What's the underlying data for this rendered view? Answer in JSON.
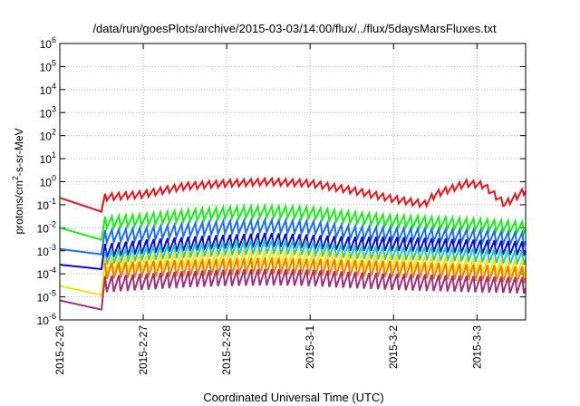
{
  "chart_data": {
    "type": "line",
    "title": "/data/run/goesPlots/archive/2015-03-03/14:00/flux/../flux/5daysMarsFluxes.txt",
    "xlabel": "Coordinated Universal Time (UTC)",
    "ylabel": {
      "pre": "protons/cm",
      "sup": "2",
      "post": "-s-sr-MeV"
    },
    "x_unit": "days",
    "xlim": [
      "2015-02-26 00:00",
      "2015-03-03 14:00"
    ],
    "x_ticks": [
      "2015-2-26",
      "2015-2-27",
      "2015-2-28",
      "2015-3-1",
      "2015-3-2",
      "2015-3-3"
    ],
    "y_scale": "log",
    "ylim": [
      1e-06,
      1000000.0
    ],
    "y_ticks": [
      {
        "base": "10",
        "exp": "-6"
      },
      {
        "base": "10",
        "exp": "-5"
      },
      {
        "base": "10",
        "exp": "-4"
      },
      {
        "base": "10",
        "exp": "-3"
      },
      {
        "base": "10",
        "exp": "-2"
      },
      {
        "base": "10",
        "exp": "-1"
      },
      {
        "base": "10",
        "exp": "0"
      },
      {
        "base": "10",
        "exp": "1"
      },
      {
        "base": "10",
        "exp": "2"
      },
      {
        "base": "10",
        "exp": "3"
      },
      {
        "base": "10",
        "exp": "4"
      },
      {
        "base": "10",
        "exp": "5"
      },
      {
        "base": "10",
        "exp": "6"
      }
    ],
    "grid": true,
    "legend": "none",
    "series": [
      {
        "color": "#e8141c",
        "sawtooth_amplitude_decades": 0.3,
        "x": [
          "2015-02-26 00:00",
          "2015-02-26 12:00",
          "2015-02-26 13:00",
          "2015-02-27 00:00",
          "2015-02-27 12:00",
          "2015-02-28 00:00",
          "2015-02-28 12:00",
          "2015-03-01 00:00",
          "2015-03-01 12:00",
          "2015-03-02 00:00",
          "2015-03-02 09:00",
          "2015-03-02 12:00",
          "2015-03-02 21:00",
          "2015-03-03 02:00",
          "2015-03-03 08:00",
          "2015-03-03 14:00"
        ],
        "values": [
          0.2,
          0.05,
          0.3,
          0.4,
          0.9,
          1.2,
          1.4,
          1.2,
          0.6,
          0.25,
          0.15,
          0.4,
          1.2,
          1.0,
          0.15,
          0.6
        ]
      },
      {
        "color": "#1aee1a",
        "sawtooth_amplitude_decades": 0.5,
        "x": [
          "2015-02-26 00:00",
          "2015-02-26 12:00",
          "2015-02-26 13:00",
          "2015-02-27 00:00",
          "2015-02-27 12:00",
          "2015-02-28 00:00",
          "2015-02-28 12:00",
          "2015-03-01 00:00",
          "2015-03-01 12:00",
          "2015-03-02 00:00",
          "2015-03-02 12:00",
          "2015-03-03 00:00",
          "2015-03-03 14:00"
        ],
        "values": [
          0.01,
          0.003,
          0.03,
          0.04,
          0.06,
          0.08,
          0.09,
          0.08,
          0.05,
          0.035,
          0.03,
          0.025,
          0.018
        ]
      },
      {
        "color": "#1e6ff0",
        "sawtooth_amplitude_decades": 0.55,
        "x": [
          "2015-02-26 00:00",
          "2015-02-26 12:00",
          "2015-02-26 13:00",
          "2015-02-27 00:00",
          "2015-02-27 12:00",
          "2015-02-28 00:00",
          "2015-02-28 12:00",
          "2015-03-01 00:00",
          "2015-03-01 12:00",
          "2015-03-02 00:00",
          "2015-03-02 12:00",
          "2015-03-03 00:00",
          "2015-03-03 14:00"
        ],
        "values": [
          0.0012,
          0.0007,
          0.008,
          0.01,
          0.015,
          0.02,
          0.022,
          0.02,
          0.012,
          0.01,
          0.009,
          0.008,
          0.006
        ]
      },
      {
        "color": "#0a0ad0",
        "sawtooth_amplitude_decades": 0.6,
        "x": [
          "2015-02-26 00:00",
          "2015-02-26 12:00",
          "2015-02-26 13:00",
          "2015-02-27 00:00",
          "2015-02-27 12:00",
          "2015-02-28 00:00",
          "2015-02-28 12:00",
          "2015-03-01 00:00",
          "2015-03-01 12:00",
          "2015-03-02 00:00",
          "2015-03-02 12:00",
          "2015-03-03 00:00",
          "2015-03-03 14:00"
        ],
        "values": [
          0.00025,
          0.00016,
          0.002,
          0.003,
          0.004,
          0.005,
          0.006,
          0.005,
          0.004,
          0.004,
          0.0035,
          0.003,
          0.0025
        ]
      },
      {
        "color": "#18c8b4",
        "sawtooth_amplitude_decades": 0.6,
        "x": [
          "2015-02-26 13:00",
          "2015-02-27 00:00",
          "2015-02-27 12:00",
          "2015-02-28 00:00",
          "2015-02-28 12:00",
          "2015-03-01 00:00",
          "2015-03-01 12:00",
          "2015-03-02 00:00",
          "2015-03-02 12:00",
          "2015-03-03 00:00",
          "2015-03-03 14:00"
        ],
        "values": [
          0.001,
          0.0015,
          0.002,
          0.0025,
          0.003,
          0.0025,
          0.0018,
          0.0016,
          0.0015,
          0.0013,
          0.001
        ]
      },
      {
        "color": "#f0e600",
        "sawtooth_amplitude_decades": 0.7,
        "x": [
          "2015-02-26 00:00",
          "2015-02-26 12:00",
          "2015-02-26 13:00",
          "2015-02-27 00:00",
          "2015-02-27 12:00",
          "2015-02-28 00:00",
          "2015-02-28 12:00",
          "2015-03-01 00:00",
          "2015-03-01 12:00",
          "2015-03-02 00:00",
          "2015-03-02 12:00",
          "2015-03-03 00:00",
          "2015-03-03 14:00"
        ],
        "values": [
          3e-05,
          1.2e-05,
          0.0005,
          0.0007,
          0.0009,
          0.001,
          0.0011,
          0.001,
          0.0008,
          0.0007,
          0.0006,
          0.0005,
          0.0004
        ]
      },
      {
        "color": "#f07800",
        "sawtooth_amplitude_decades": 0.7,
        "x": [
          "2015-02-26 13:00",
          "2015-02-27 00:00",
          "2015-02-27 12:00",
          "2015-02-28 00:00",
          "2015-02-28 12:00",
          "2015-03-01 00:00",
          "2015-03-01 12:00",
          "2015-03-02 00:00",
          "2015-03-02 12:00",
          "2015-03-03 00:00",
          "2015-03-03 14:00"
        ],
        "values": [
          0.0003,
          0.00035,
          0.0004,
          0.00045,
          0.0005,
          0.00045,
          0.0004,
          0.00035,
          0.0003,
          0.00025,
          0.0002
        ]
      },
      {
        "color": "#a0307a",
        "sawtooth_amplitude_decades": 0.7,
        "x": [
          "2015-02-26 00:00",
          "2015-02-26 12:00",
          "2015-02-26 13:00",
          "2015-02-27 00:00",
          "2015-02-27 12:00",
          "2015-02-28 00:00",
          "2015-02-28 12:00",
          "2015-03-01 00:00",
          "2015-03-01 12:00",
          "2015-03-02 00:00",
          "2015-03-02 12:00",
          "2015-03-03 00:00",
          "2015-03-03 14:00"
        ],
        "values": [
          7e-06,
          2.8e-06,
          8e-05,
          0.0001,
          0.00013,
          0.00015,
          0.00016,
          0.00015,
          0.00012,
          0.0001,
          9e-05,
          8e-05,
          7e-05
        ]
      }
    ]
  }
}
